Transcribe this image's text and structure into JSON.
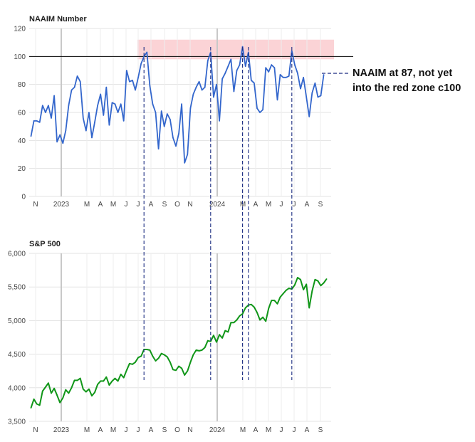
{
  "chart_data": [
    {
      "type": "line",
      "title": "NAAIM Number",
      "xlabel": "",
      "ylabel": "",
      "ylim": [
        0,
        120
      ],
      "yticks": [
        "0",
        "20",
        "40",
        "60",
        "80",
        "100",
        "120"
      ],
      "xticks": [
        "N",
        "2023",
        "M",
        "A",
        "M",
        "J",
        "J",
        "A",
        "S",
        "O",
        "N",
        "2024",
        "M",
        "A",
        "M",
        "J",
        "J",
        "A",
        "S"
      ],
      "grid": true,
      "highlight_band": {
        "from": 98,
        "to": 112,
        "color": "#fbd3d6"
      },
      "reference_line": {
        "value": 100,
        "color": "#000000"
      },
      "series": [
        {
          "color": "#3366cc",
          "values": [
            43,
            54,
            54,
            53,
            65,
            60,
            65,
            56,
            72,
            39,
            44,
            38,
            47,
            65,
            76,
            78,
            86,
            82,
            56,
            47,
            60,
            42,
            53,
            65,
            73,
            58,
            78,
            51,
            67,
            66,
            60,
            66,
            54,
            90,
            82,
            83,
            76,
            85,
            95,
            100,
            103,
            79,
            66,
            60,
            34,
            61,
            50,
            59,
            55,
            42,
            36,
            45,
            66,
            24,
            30,
            63,
            73,
            78,
            82,
            76,
            78,
            97,
            103,
            71,
            80,
            54,
            84,
            88,
            93,
            98,
            75,
            90,
            94,
            107,
            93,
            103,
            83,
            81,
            63,
            60,
            62,
            92,
            89,
            94,
            92,
            69,
            87,
            85,
            85,
            86,
            104,
            94,
            88,
            77,
            85,
            71,
            57,
            74,
            81,
            71,
            72,
            87
          ]
        }
      ]
    },
    {
      "type": "line",
      "title": "S&P 500",
      "xlabel": "",
      "ylabel": "",
      "ylim": [
        3500,
        6000
      ],
      "yticks": [
        "3,500",
        "4,000",
        "4,500",
        "5,000",
        "5,500",
        "6,000"
      ],
      "xticks": [
        "N",
        "2023",
        "M",
        "A",
        "M",
        "J",
        "J",
        "A",
        "S",
        "O",
        "N",
        "2024",
        "M",
        "A",
        "M",
        "J",
        "J",
        "A",
        "S"
      ],
      "grid": true,
      "series": [
        {
          "color": "#109618",
          "values": [
            3700,
            3830,
            3760,
            3740,
            3950,
            4010,
            4070,
            3920,
            3990,
            3890,
            3780,
            3850,
            3970,
            3920,
            4000,
            4110,
            4110,
            4140,
            3980,
            3940,
            3980,
            3880,
            3930,
            4050,
            4100,
            4100,
            4160,
            4040,
            4100,
            4140,
            4100,
            4200,
            4150,
            4260,
            4360,
            4350,
            4380,
            4450,
            4470,
            4570,
            4570,
            4560,
            4470,
            4400,
            4440,
            4510,
            4490,
            4460,
            4380,
            4270,
            4260,
            4320,
            4290,
            4190,
            4250,
            4380,
            4490,
            4560,
            4550,
            4560,
            4600,
            4700,
            4690,
            4780,
            4680,
            4790,
            4740,
            4850,
            4830,
            4970,
            4970,
            5010,
            5070,
            5100,
            5190,
            5230,
            5240,
            5200,
            5120,
            5010,
            5050,
            4990,
            5180,
            5300,
            5300,
            5250,
            5350,
            5400,
            5450,
            5480,
            5470,
            5530,
            5640,
            5610,
            5460,
            5540,
            5190,
            5440,
            5610,
            5590,
            5520,
            5560,
            5620
          ]
        }
      ]
    }
  ],
  "annotation": {
    "line1": "NAAIM at 87, not yet",
    "line2": "into the red zone c100"
  },
  "marker_lines": {
    "color": "#1a2b80",
    "x_indices": [
      39,
      62,
      73,
      75,
      90
    ]
  }
}
